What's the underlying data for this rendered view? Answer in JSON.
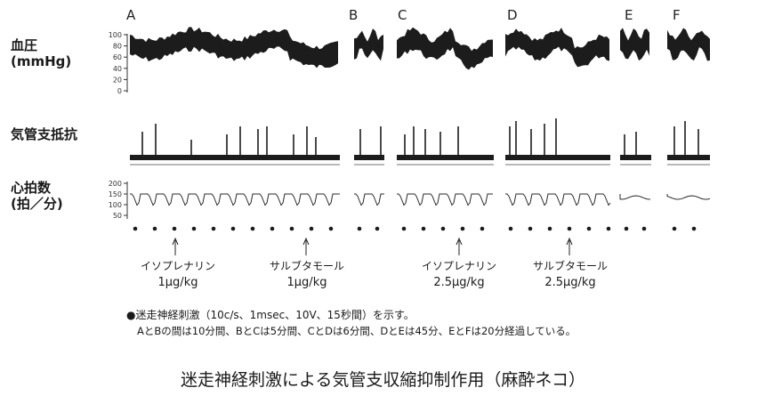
{
  "panels": [
    "A",
    "B",
    "C",
    "D",
    "E",
    "F"
  ],
  "row_labels": {
    "blood_pressure": [
      "血圧",
      "(mmHg)"
    ],
    "airway_resistance": "気管支抵抗",
    "heart_rate": [
      "心拍数",
      "(拍／分)"
    ]
  },
  "bp_ticks": [
    "100",
    "80",
    "60",
    "40",
    "20",
    "0"
  ],
  "hr_ticks": [
    "200",
    "150",
    "100",
    "50"
  ],
  "drugs": [
    {
      "name": "イソプレナリン",
      "dose": "1μg/kg"
    },
    {
      "name": "サルブタモール",
      "dose": "1μg/kg"
    },
    {
      "name": "イソプレナリン",
      "dose": "2.5μg/kg"
    },
    {
      "name": "サルブタモール",
      "dose": "2.5μg/kg"
    }
  ],
  "note_line1": "●迷走神経刺激（10c/s、1msec、10V、15秒間）を示す。",
  "note_line2": "AとBの間は10分間、BとCは5分間、CとDは6分間、DとEは45分、EとFは20分経過している。",
  "caption": "迷走神経刺激による気管支収縮抑制作用（麻酔ネコ）"
}
